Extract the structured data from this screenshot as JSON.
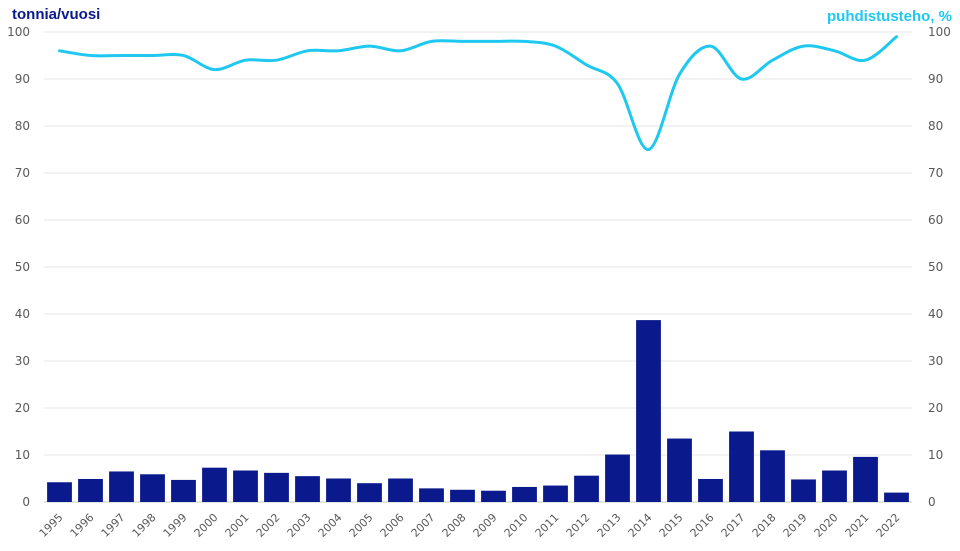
{
  "chart_data": {
    "type": "bar+line",
    "ylabel_left": "tonnia/vuosi",
    "ylabel_right": "puhdistusteho, %",
    "ylim": [
      0,
      100
    ],
    "yticks": [
      0,
      10,
      20,
      30,
      40,
      50,
      60,
      70,
      80,
      90,
      100
    ],
    "categories": [
      "1995",
      "1996",
      "1997",
      "1998",
      "1999",
      "2000",
      "2001",
      "2002",
      "2003",
      "2004",
      "2005",
      "2006",
      "2007",
      "2008",
      "2009",
      "2010",
      "2011",
      "2012",
      "2013",
      "2014",
      "2015",
      "2016",
      "2017",
      "2018",
      "2019",
      "2020",
      "2021",
      "2022"
    ],
    "series": [
      {
        "type": "bar",
        "axis": "left",
        "color": "#0a1a8c",
        "values": [
          4.2,
          4.9,
          6.5,
          5.9,
          4.7,
          7.3,
          6.7,
          6.2,
          5.5,
          5.0,
          4.0,
          5.0,
          2.9,
          2.6,
          2.4,
          3.2,
          3.5,
          5.6,
          10.1,
          38.7,
          13.5,
          4.9,
          15.0,
          11.0,
          4.8,
          6.7,
          9.6,
          2.0
        ]
      },
      {
        "type": "line",
        "axis": "right",
        "color": "#1ec8f0",
        "values": [
          96,
          95,
          95,
          95,
          95,
          92,
          94,
          94,
          96,
          96,
          97,
          96,
          98,
          98,
          98,
          98,
          97,
          93,
          89,
          75,
          91,
          97,
          90,
          94,
          97,
          96,
          94,
          99
        ]
      }
    ]
  }
}
